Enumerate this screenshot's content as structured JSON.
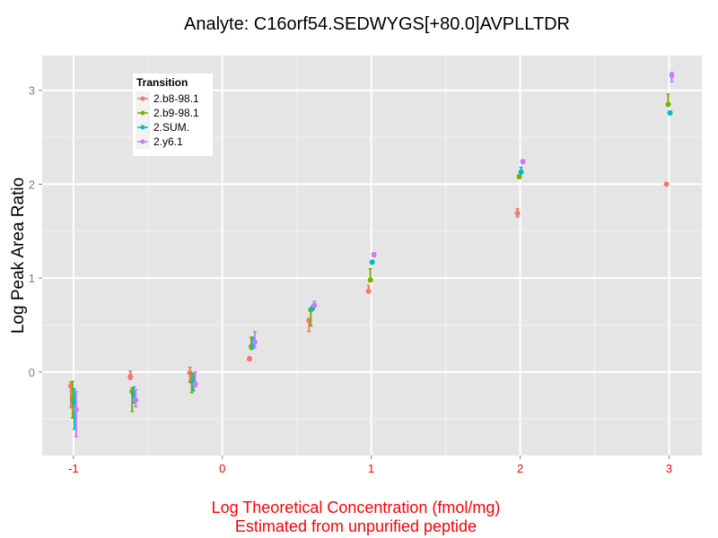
{
  "chart_data": {
    "type": "scatter",
    "title": "Analyte: C16orf54.SEDWYGS[+80.0]AVPLLTDR",
    "xlabel": [
      "Log Theoretical Concentration (fmol/mg)",
      "Estimated from unpurified peptide"
    ],
    "ylabel": "Log Peak Area Ratio",
    "xlim": [
      -1.21,
      3.22
    ],
    "ylim": [
      -0.89,
      3.37
    ],
    "xticks": [
      "-1",
      "0",
      "1",
      "2",
      "3"
    ],
    "xtick_values": [
      -1,
      0,
      1,
      2,
      3
    ],
    "yticks": [
      "0",
      "1",
      "2",
      "3"
    ],
    "ytick_values": [
      0,
      1,
      2,
      3
    ],
    "grid": true,
    "legend": {
      "title": "Transition",
      "placement": "top-left"
    },
    "x": [
      -1,
      -0.6,
      -0.2,
      0.2,
      0.6,
      1,
      2,
      3
    ],
    "series": [
      {
        "name": "2.b8-98.1",
        "color": "#F8766D",
        "values": [
          -0.15,
          -0.05,
          -0.01,
          0.14,
          0.55,
          0.86,
          1.69,
          2.0
        ],
        "lo": [
          -0.38,
          -0.08,
          -0.11,
          0.12,
          0.43,
          0.84,
          1.65,
          1.99
        ],
        "hi": [
          -0.11,
          0.01,
          0.05,
          0.16,
          0.57,
          0.92,
          1.74,
          2.01
        ]
      },
      {
        "name": "2.b9-98.1",
        "color": "#7CAE00",
        "values": [
          -0.29,
          -0.21,
          -0.1,
          0.27,
          0.66,
          0.98,
          2.08,
          2.85
        ],
        "lo": [
          -0.49,
          -0.42,
          -0.22,
          0.24,
          0.49,
          0.96,
          2.06,
          2.84
        ],
        "hi": [
          -0.1,
          -0.17,
          -0.01,
          0.37,
          0.68,
          1.1,
          2.1,
          2.96
        ]
      },
      {
        "name": "2.SUM.",
        "color": "#00BFC4",
        "values": [
          -0.32,
          -0.24,
          -0.11,
          0.29,
          0.68,
          1.17,
          2.13,
          2.76
        ],
        "lo": [
          -0.61,
          -0.33,
          -0.2,
          0.25,
          0.66,
          1.15,
          2.11,
          2.74
        ],
        "hi": [
          -0.18,
          -0.16,
          -0.02,
          0.37,
          0.7,
          1.19,
          2.18,
          2.78
        ]
      },
      {
        "name": "2.y6.1",
        "color": "#C77CFF",
        "values": [
          -0.4,
          -0.3,
          -0.13,
          0.32,
          0.71,
          1.25,
          2.24,
          3.16
        ],
        "lo": [
          -0.69,
          -0.37,
          -0.16,
          0.26,
          0.69,
          1.23,
          2.22,
          3.09
        ],
        "hi": [
          -0.21,
          -0.19,
          0.0,
          0.43,
          0.75,
          1.27,
          2.26,
          3.19
        ]
      }
    ]
  }
}
